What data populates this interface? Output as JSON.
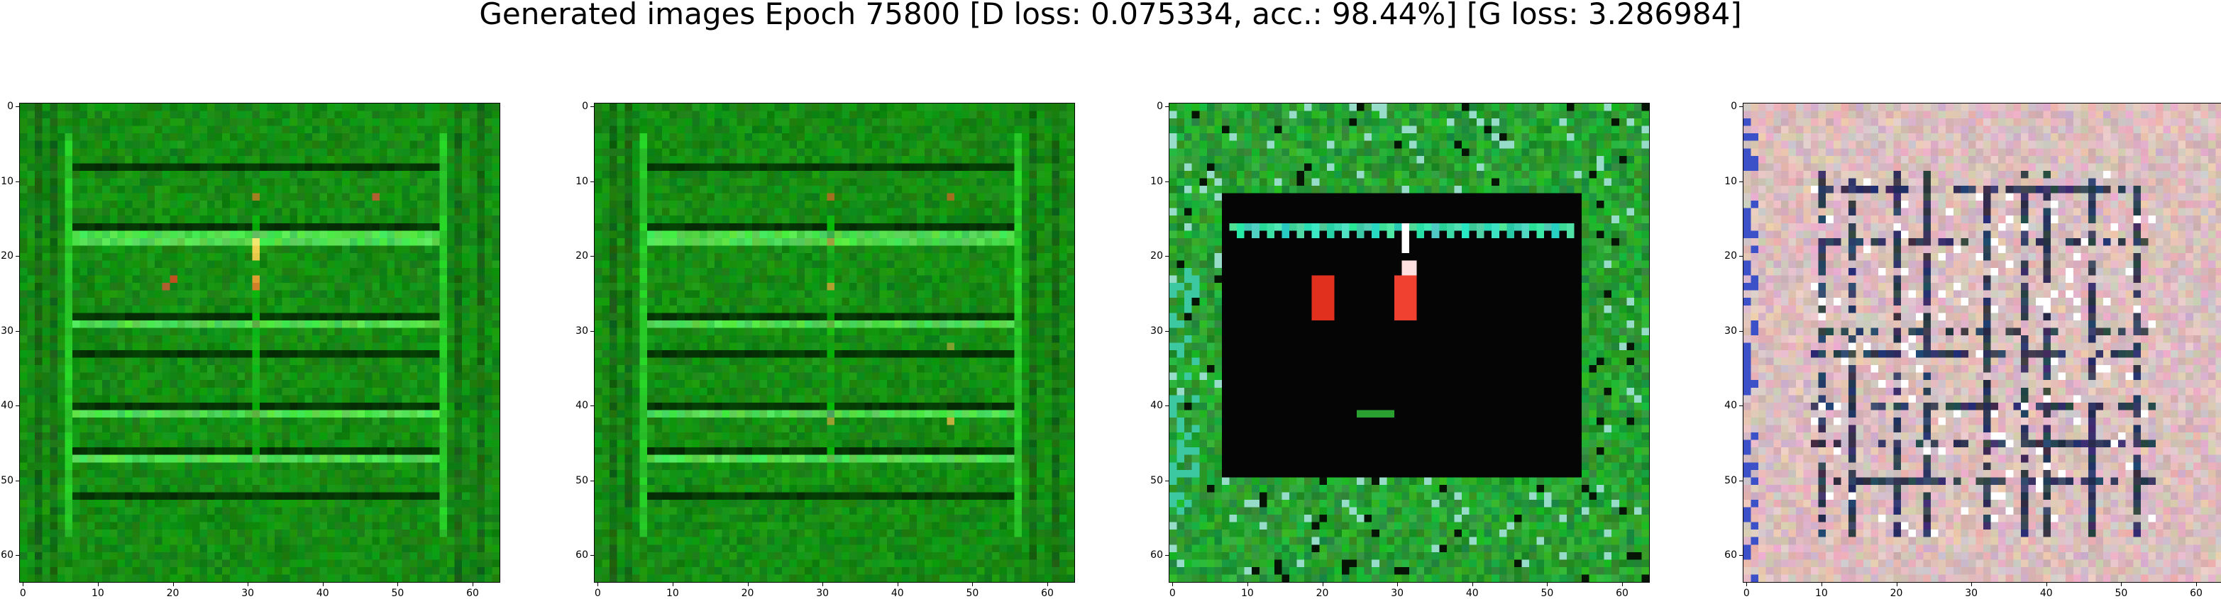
{
  "figure": {
    "title": "Generated images Epoch 75800 [D loss: 0.075334, acc.: 98.44%] [G loss: 3.286984]"
  },
  "axes": {
    "x_ticks": [
      "0",
      "10",
      "20",
      "30",
      "40",
      "50",
      "60"
    ],
    "y_ticks": [
      "0",
      "10",
      "20",
      "30",
      "40",
      "50",
      "60"
    ],
    "x_range": [
      0,
      63
    ],
    "y_range": [
      0,
      63
    ]
  },
  "panels": [
    {
      "id": "panel-1",
      "theme": "green-grid",
      "base_color": "#1f8a1a",
      "accent_color": "#6ef07a"
    },
    {
      "id": "panel-2",
      "theme": "green-grid",
      "base_color": "#1f8a1a",
      "accent_color": "#6ef07a"
    },
    {
      "id": "panel-3",
      "theme": "green-frame-black-center",
      "base_color": "#1f8a1a",
      "accent_color": "#ff3020"
    },
    {
      "id": "panel-4",
      "theme": "pink-grid",
      "base_color": "#d9b9b6",
      "accent_color": "#1c2a44"
    }
  ]
}
